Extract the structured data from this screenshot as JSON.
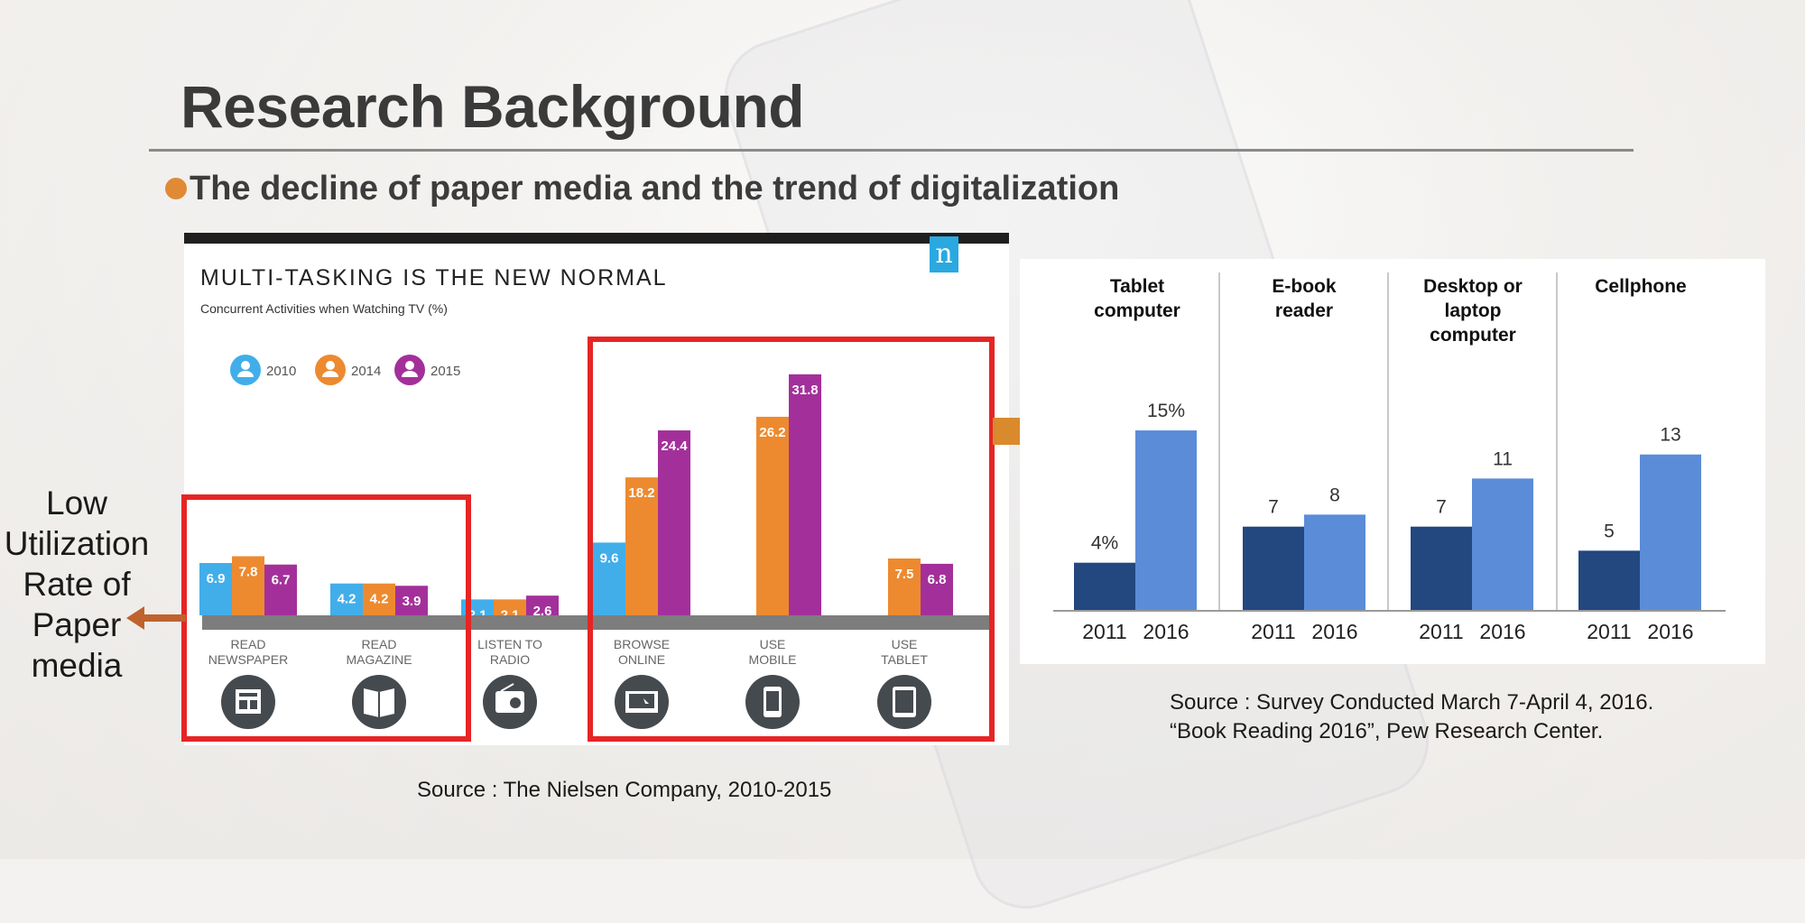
{
  "slide": {
    "title": "Research Background",
    "subtitle": "The decline of paper media and the trend of digitalization",
    "side_label_lines": [
      "Low",
      "Utilization",
      "Rate of",
      "Paper",
      "media"
    ],
    "source_left": "Source : The Nielsen Company, 2010-2015",
    "source_right_lines": [
      "Source : Survey Conducted March 7-April 4, 2016.",
      "“Book Reading 2016”, Pew Research Center."
    ],
    "colors": {
      "accent_orange": "#e08a35",
      "highlight_red": "#e52524"
    }
  },
  "chart_data": [
    {
      "type": "bar",
      "title": "MULTI-TASKING IS THE NEW NORMAL",
      "subtitle": "Concurrent Activities when Watching TV (%)",
      "logo": "n",
      "categories": [
        "READ NEWSPAPER",
        "READ MAGAZINE",
        "LISTEN TO RADIO",
        "BROWSE ONLINE",
        "USE MOBILE",
        "USE TABLET"
      ],
      "category_lines": [
        [
          "READ",
          "NEWSPAPER"
        ],
        [
          "READ",
          "MAGAZINE"
        ],
        [
          "LISTEN TO",
          "RADIO"
        ],
        [
          "BROWSE",
          "ONLINE"
        ],
        [
          "USE",
          "MOBILE"
        ],
        [
          "USE",
          "TABLET"
        ]
      ],
      "category_icons": [
        "newspaper-icon",
        "magazine-icon",
        "radio-icon",
        "laptop-icon",
        "mobile-phone-icon",
        "tablet-icon"
      ],
      "series": [
        {
          "name": "2010",
          "color": "#41aeea",
          "values": [
            6.9,
            4.2,
            2.1,
            9.6,
            null,
            null
          ]
        },
        {
          "name": "2014",
          "color": "#ed8a2f",
          "values": [
            7.8,
            4.2,
            2.1,
            18.2,
            26.2,
            7.5
          ]
        },
        {
          "name": "2015",
          "color": "#a3309a",
          "values": [
            6.7,
            3.9,
            2.6,
            24.4,
            31.8,
            6.8
          ]
        }
      ],
      "legend": "top-left",
      "highlight_groups": [
        [
          0,
          1
        ],
        [
          3,
          4,
          5
        ]
      ]
    },
    {
      "type": "bar",
      "categories": [
        "Tablet computer",
        "E-book reader",
        "Desktop or laptop computer",
        "Cellphone"
      ],
      "category_lines": [
        [
          "Tablet",
          "computer"
        ],
        [
          "E-book",
          "reader"
        ],
        [
          "Desktop or",
          "laptop",
          "computer"
        ],
        [
          "Cellphone"
        ]
      ],
      "x_labels": [
        "2011",
        "2016"
      ],
      "series": [
        {
          "name": "2011",
          "color": "#23477f",
          "values": [
            4,
            7,
            7,
            5
          ],
          "labels": [
            "4%",
            "7",
            "7",
            "5"
          ]
        },
        {
          "name": "2016",
          "color": "#5b8cd8",
          "values": [
            15,
            8,
            11,
            13
          ],
          "labels": [
            "15%",
            "8",
            "11",
            "13"
          ]
        }
      ],
      "unit": "%"
    }
  ]
}
